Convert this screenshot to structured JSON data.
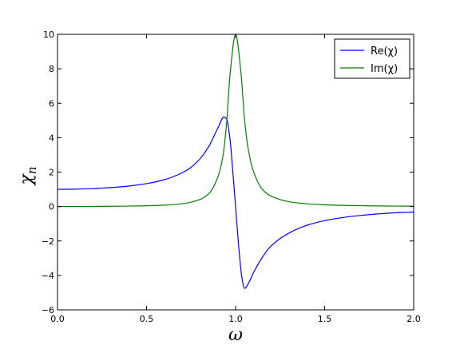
{
  "chart_data": {
    "type": "line",
    "title": "",
    "xlabel": "ω",
    "ylabel_main": "χ",
    "ylabel_sub": "n",
    "xlim": [
      0.0,
      2.0
    ],
    "ylim": [
      -6,
      10
    ],
    "xticks": [
      0.0,
      0.5,
      1.0,
      1.5,
      2.0
    ],
    "xtick_labels": [
      "0.0",
      "0.5",
      "1.0",
      "1.5",
      "2.0"
    ],
    "yticks": [
      -6,
      -4,
      -2,
      0,
      2,
      4,
      6,
      8,
      10
    ],
    "ytick_labels": [
      "−6",
      "−4",
      "−2",
      "0",
      "2",
      "4",
      "6",
      "8",
      "10"
    ],
    "grid": false,
    "legend_position": "top-right",
    "series": [
      {
        "name": "Re(χ)",
        "color": "#0000ff",
        "points": [
          [
            0.0,
            1.0
          ],
          [
            0.1,
            1.01
          ],
          [
            0.2,
            1.04
          ],
          [
            0.3,
            1.1
          ],
          [
            0.4,
            1.19
          ],
          [
            0.5,
            1.33
          ],
          [
            0.6,
            1.56
          ],
          [
            0.7,
            1.96
          ],
          [
            0.75,
            2.28
          ],
          [
            0.8,
            2.77
          ],
          [
            0.85,
            3.5
          ],
          [
            0.9,
            4.55
          ],
          [
            0.935,
            5.2
          ],
          [
            0.95,
            5.08
          ],
          [
            0.97,
            3.8
          ],
          [
            0.98,
            2.6
          ],
          [
            1.0,
            0.0
          ],
          [
            1.02,
            -2.6
          ],
          [
            1.035,
            -4.1
          ],
          [
            1.05,
            -4.75
          ],
          [
            1.08,
            -4.3
          ],
          [
            1.1,
            -3.85
          ],
          [
            1.15,
            -2.95
          ],
          [
            1.2,
            -2.28
          ],
          [
            1.3,
            -1.54
          ],
          [
            1.4,
            -1.09
          ],
          [
            1.5,
            -0.82
          ],
          [
            1.6,
            -0.64
          ],
          [
            1.7,
            -0.52
          ],
          [
            1.8,
            -0.43
          ],
          [
            1.9,
            -0.36
          ],
          [
            2.0,
            -0.32
          ]
        ]
      },
      {
        "name": "Im(χ)",
        "color": "#008000",
        "points": [
          [
            0.0,
            0.0
          ],
          [
            0.1,
            0.004
          ],
          [
            0.2,
            0.009
          ],
          [
            0.3,
            0.016
          ],
          [
            0.4,
            0.026
          ],
          [
            0.5,
            0.045
          ],
          [
            0.6,
            0.08
          ],
          [
            0.7,
            0.16
          ],
          [
            0.8,
            0.41
          ],
          [
            0.85,
            0.75
          ],
          [
            0.9,
            1.7
          ],
          [
            0.93,
            3.0
          ],
          [
            0.95,
            4.9
          ],
          [
            0.97,
            7.8
          ],
          [
            1.0,
            10.0
          ],
          [
            1.03,
            7.8
          ],
          [
            1.05,
            5.1
          ],
          [
            1.07,
            3.4
          ],
          [
            1.1,
            2.05
          ],
          [
            1.15,
            1.0
          ],
          [
            1.2,
            0.6
          ],
          [
            1.3,
            0.28
          ],
          [
            1.4,
            0.16
          ],
          [
            1.5,
            0.1
          ],
          [
            1.6,
            0.07
          ],
          [
            1.7,
            0.05
          ],
          [
            1.8,
            0.035
          ],
          [
            1.9,
            0.026
          ],
          [
            2.0,
            0.02
          ]
        ]
      }
    ]
  }
}
